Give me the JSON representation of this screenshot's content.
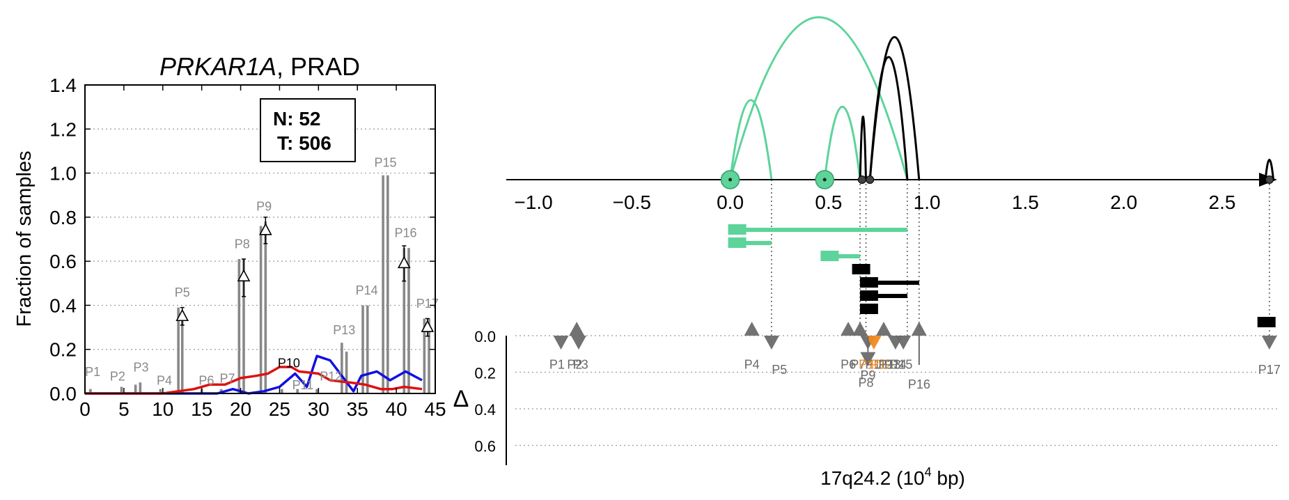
{
  "left_panel": {
    "title_gene": "PRKAR1A",
    "title_rest": ", PRAD",
    "legend": {
      "n": "N: 52",
      "t": "T: 506"
    }
  },
  "right_panel": {
    "delta_label": "Δ",
    "xlabel_main": "17q24.2 (10",
    "xlabel_sup": "4",
    "xlabel_tail": " bp)"
  },
  "chart_data": [
    {
      "type": "bar",
      "ylabel": "Fraction of samples",
      "xlim": [
        0,
        45
      ],
      "ylim": [
        0,
        1.4
      ],
      "xticks": [
        0,
        5,
        10,
        15,
        20,
        25,
        30,
        35,
        40,
        45
      ],
      "yticks": [
        0.0,
        0.2,
        0.4,
        0.6,
        0.8,
        1.0,
        1.2,
        1.4
      ],
      "grid": "horizontal dotted",
      "colors": {
        "bars": "#888888",
        "blue_line": "#1010e0",
        "red_line": "#e01010",
        "marker": "#000000"
      },
      "bars": [
        {
          "x": 0.7,
          "v": 0.02
        },
        {
          "x": 4.7,
          "v": 0.03
        },
        {
          "x": 6.5,
          "v": 0.04
        },
        {
          "x": 7.1,
          "v": 0.05
        },
        {
          "x": 9.7,
          "v": 0.02
        },
        {
          "x": 12.0,
          "v": 0.39
        },
        {
          "x": 12.5,
          "v": 0.34
        },
        {
          "x": 15.0,
          "v": 0.02
        },
        {
          "x": 17.5,
          "v": 0.02
        },
        {
          "x": 19.8,
          "v": 0.61
        },
        {
          "x": 20.4,
          "v": 0.61
        },
        {
          "x": 22.6,
          "v": 0.76
        },
        {
          "x": 23.2,
          "v": 0.78
        },
        {
          "x": 25.3,
          "v": 0.02
        },
        {
          "x": 27.3,
          "v": 0.02
        },
        {
          "x": 29.8,
          "v": 0.02
        },
        {
          "x": 33.0,
          "v": 0.23
        },
        {
          "x": 33.6,
          "v": 0.19
        },
        {
          "x": 35.7,
          "v": 0.4
        },
        {
          "x": 36.3,
          "v": 0.4
        },
        {
          "x": 38.3,
          "v": 0.99
        },
        {
          "x": 38.9,
          "v": 0.99
        },
        {
          "x": 41.0,
          "v": 0.66
        },
        {
          "x": 41.6,
          "v": 0.66
        },
        {
          "x": 43.6,
          "v": 0.34
        },
        {
          "x": 44.2,
          "v": 0.34
        }
      ],
      "labels": [
        {
          "text": "P1",
          "x": 1.0,
          "y": 0.06
        },
        {
          "text": "P2",
          "x": 4.2,
          "y": 0.04
        },
        {
          "text": "P3",
          "x": 7.2,
          "y": 0.08
        },
        {
          "text": "P4",
          "x": 10.2,
          "y": 0.02
        },
        {
          "text": "P5",
          "x": 12.5,
          "y": 0.42
        },
        {
          "text": "P6",
          "x": 15.6,
          "y": 0.02
        },
        {
          "text": "P7",
          "x": 18.3,
          "y": 0.03
        },
        {
          "text": "P8",
          "x": 20.2,
          "y": 0.64
        },
        {
          "text": "P9",
          "x": 23.0,
          "y": 0.81
        },
        {
          "text": "P10",
          "x": 26.2,
          "y": 0.1,
          "dark": true
        },
        {
          "text": "P11",
          "x": 28.0,
          "y": 0.0
        },
        {
          "text": "P12",
          "x": 31.6,
          "y": 0.04
        },
        {
          "text": "P13",
          "x": 33.3,
          "y": 0.25
        },
        {
          "text": "P14",
          "x": 36.2,
          "y": 0.43
        },
        {
          "text": "P15",
          "x": 38.6,
          "y": 1.01
        },
        {
          "text": "P16",
          "x": 41.2,
          "y": 0.69
        },
        {
          "text": "P17",
          "x": 44.0,
          "y": 0.37
        }
      ],
      "markers": [
        {
          "x": 12.5,
          "y": 0.35,
          "lo": 0.31,
          "hi": 0.39
        },
        {
          "x": 20.4,
          "y": 0.53,
          "lo": 0.44,
          "hi": 0.61
        },
        {
          "x": 23.2,
          "y": 0.74,
          "lo": 0.68,
          "hi": 0.8
        },
        {
          "x": 41.0,
          "y": 0.59,
          "lo": 0.51,
          "hi": 0.67
        },
        {
          "x": 44.0,
          "y": 0.3,
          "lo": 0.26,
          "hi": 0.34
        }
      ],
      "series": [
        {
          "color": "#1010e0",
          "points": [
            [
              0,
              0
            ],
            [
              5,
              0
            ],
            [
              10,
              0
            ],
            [
              14,
              0
            ],
            [
              17,
              0
            ],
            [
              19,
              0.02
            ],
            [
              21,
              0
            ],
            [
              23,
              0.01
            ],
            [
              25,
              0.03
            ],
            [
              27,
              0.09
            ],
            [
              28.5,
              0.03
            ],
            [
              29.8,
              0.17
            ],
            [
              31.5,
              0.15
            ],
            [
              33,
              0.08
            ],
            [
              34.5,
              0.01
            ],
            [
              35.5,
              0.08
            ],
            [
              37.5,
              0.1
            ],
            [
              39.2,
              0.06
            ],
            [
              41.2,
              0.1
            ],
            [
              43.3,
              0.06
            ]
          ]
        },
        {
          "color": "#e01010",
          "points": [
            [
              0,
              0
            ],
            [
              5,
              0
            ],
            [
              10,
              0
            ],
            [
              12,
              0.01
            ],
            [
              14,
              0.02
            ],
            [
              16,
              0.04
            ],
            [
              18,
              0.04
            ],
            [
              20,
              0.07
            ],
            [
              22,
              0.08
            ],
            [
              23.5,
              0.09
            ],
            [
              25,
              0.12
            ],
            [
              26.5,
              0.12
            ],
            [
              27.5,
              0.1
            ],
            [
              30,
              0.09
            ],
            [
              31.5,
              0.06
            ],
            [
              34,
              0.05
            ],
            [
              36,
              0.04
            ],
            [
              38,
              0.02
            ],
            [
              39.5,
              0.02
            ],
            [
              41,
              0.03
            ],
            [
              43.3,
              0.02
            ]
          ]
        }
      ]
    },
    {
      "type": "arc",
      "xlim": [
        -1.1,
        2.8
      ],
      "xticks": [
        -1.0,
        -0.5,
        0.0,
        0.5,
        1.0,
        1.5,
        2.0,
        2.5
      ],
      "xtick_labels": [
        "−1.0",
        "−0.5",
        "0.0",
        "0.5",
        "1.0",
        "1.5",
        "2.0",
        "2.5"
      ],
      "colors": {
        "green": "#5cd49a",
        "black": "#000000",
        "gray": "#6a6a6a",
        "orange": "#f08a20"
      },
      "green_circles": [
        0.0,
        0.48
      ],
      "black_dots": [
        0.67,
        0.71,
        2.74
      ],
      "arcs": [
        {
          "a": 0.0,
          "b": 0.21,
          "h": 0.48,
          "color": "#5cd49a"
        },
        {
          "a": 0.0,
          "b": 0.9,
          "h": 0.98,
          "color": "#5cd49a"
        },
        {
          "a": 0.48,
          "b": 0.66,
          "h": 0.44,
          "color": "#5cd49a"
        },
        {
          "a": 0.66,
          "b": 0.69,
          "h": 0.38,
          "color": "#000000"
        },
        {
          "a": 0.71,
          "b": 0.9,
          "h": 0.74,
          "color": "#000000"
        },
        {
          "a": 0.71,
          "b": 0.96,
          "h": 0.86,
          "color": "#000000"
        },
        {
          "a": 2.72,
          "b": 2.76,
          "h": 0.12,
          "color": "#000000"
        }
      ],
      "transcripts": [
        {
          "start": 0.0,
          "end": 0.9,
          "row": 0,
          "color": "#5cd49a"
        },
        {
          "start": 0.0,
          "end": 0.21,
          "row": 1,
          "color": "#5cd49a"
        },
        {
          "start": 0.47,
          "end": 0.66,
          "row": 2,
          "color": "#5cd49a"
        },
        {
          "start": 0.63,
          "end": 0.7,
          "row": 3,
          "color": "#000000"
        },
        {
          "start": 0.67,
          "end": 0.96,
          "row": 4,
          "color": "#000000"
        },
        {
          "start": 0.67,
          "end": 0.9,
          "row": 5,
          "color": "#000000"
        },
        {
          "start": 0.67,
          "end": 0.71,
          "row": 6,
          "color": "#000000"
        },
        {
          "start": 2.69,
          "end": 2.76,
          "row": 7,
          "color": "#000000"
        }
      ],
      "delta_axis": {
        "ylim": [
          0,
          0.7
        ],
        "yticks": [
          0.0,
          0.2,
          0.4,
          0.6
        ],
        "ytick_labels": [
          "0.0",
          "0.2",
          "0.4",
          "0.6"
        ]
      },
      "triangles": [
        {
          "x": -0.86,
          "dir": "down",
          "color": "#6a6a6a",
          "lenv": 0.0
        },
        {
          "x": -0.78,
          "dir": "up",
          "color": "#6a6a6a",
          "lenv": 0.0
        },
        {
          "x": -0.77,
          "dir": "down",
          "color": "#6a6a6a",
          "lenv": 0.0
        },
        {
          "x": 0.11,
          "dir": "up",
          "color": "#6a6a6a",
          "lenv": 0.0
        },
        {
          "x": 0.21,
          "dir": "down",
          "color": "#6a6a6a",
          "lenv": 0.0
        },
        {
          "x": 0.6,
          "dir": "up",
          "color": "#6a6a6a",
          "lenv": 0.0
        },
        {
          "x": 0.66,
          "dir": "up",
          "color": "#6a6a6a",
          "lenv": 0.0
        },
        {
          "x": 0.7,
          "dir": "down",
          "color": "#6a6a6a",
          "lenv": 0.0
        },
        {
          "x": 0.73,
          "dir": "down",
          "color": "#f08a20",
          "lenv": 0.0
        },
        {
          "x": 0.7,
          "dir": "down",
          "color": "#6a6a6a",
          "lenv": 0.09
        },
        {
          "x": 0.78,
          "dir": "up",
          "color": "#6a6a6a",
          "lenv": 0.0
        },
        {
          "x": 0.84,
          "dir": "down",
          "color": "#6a6a6a",
          "lenv": 0.0
        },
        {
          "x": 0.88,
          "dir": "down",
          "color": "#6a6a6a",
          "lenv": 0.0
        },
        {
          "x": 0.96,
          "dir": "up",
          "color": "#6a6a6a",
          "lenv": 0.16
        },
        {
          "x": 2.74,
          "dir": "down",
          "color": "#6a6a6a",
          "lenv": 0.0
        }
      ],
      "tri_labels": [
        {
          "text": "P1",
          "x": -0.88,
          "y": 0.18,
          "color": "#6a6a6a"
        },
        {
          "text": "P2",
          "x": -0.79,
          "y": 0.18,
          "color": "#6a6a6a"
        },
        {
          "text": "P3",
          "x": -0.76,
          "y": 0.18,
          "color": "#6a6a6a"
        },
        {
          "text": "P4",
          "x": 0.11,
          "y": 0.18,
          "color": "#6a6a6a"
        },
        {
          "text": "P5",
          "x": 0.25,
          "y": 0.21,
          "color": "#6a6a6a"
        },
        {
          "text": "P6",
          "x": 0.6,
          "y": 0.18,
          "color": "#6a6a6a"
        },
        {
          "text": "P7",
          "x": 0.65,
          "y": 0.18,
          "color": "#6a6a6a"
        },
        {
          "text": "P10",
          "x": 0.71,
          "y": 0.18,
          "color": "#f08a20"
        },
        {
          "text": "P11",
          "x": 0.74,
          "y": 0.18,
          "color": "#6a6a6a"
        },
        {
          "text": "P12",
          "x": 0.77,
          "y": 0.18,
          "color": "#f08a20"
        },
        {
          "text": "P13",
          "x": 0.81,
          "y": 0.18,
          "color": "#6a6a6a"
        },
        {
          "text": "P14",
          "x": 0.84,
          "y": 0.18,
          "color": "#6a6a6a"
        },
        {
          "text": "P15",
          "x": 0.87,
          "y": 0.18,
          "color": "#6a6a6a"
        },
        {
          "text": "P9",
          "x": 0.7,
          "y": 0.24,
          "color": "#6a6a6a"
        },
        {
          "text": "P8",
          "x": 0.69,
          "y": 0.28,
          "color": "#6a6a6a"
        },
        {
          "text": "P16",
          "x": 0.96,
          "y": 0.29,
          "color": "#6a6a6a"
        },
        {
          "text": "P17",
          "x": 2.74,
          "y": 0.21,
          "color": "#6a6a6a"
        }
      ],
      "guides": [
        0.21,
        0.66,
        0.69,
        0.9,
        0.96,
        2.74
      ]
    }
  ]
}
